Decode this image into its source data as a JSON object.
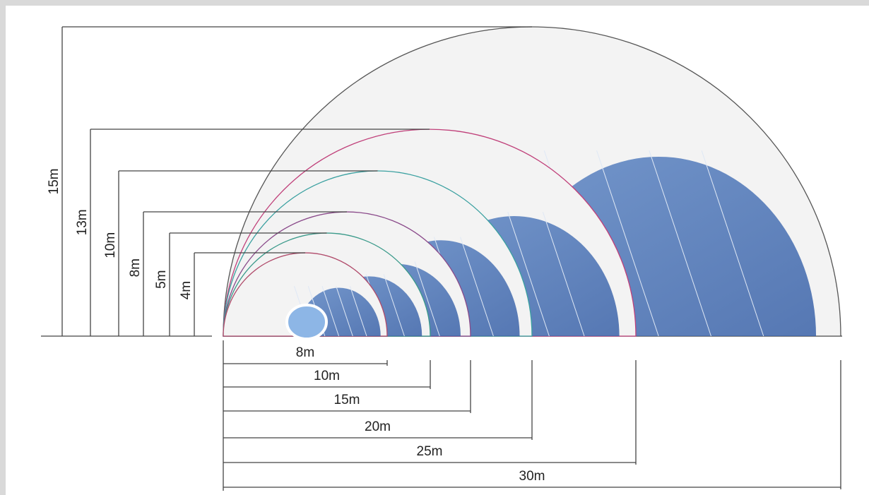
{
  "height_labels": [
    "15m",
    "13m",
    "10m",
    "8m",
    "5m",
    "4m"
  ],
  "width_labels": [
    "8m",
    "10m",
    "15m",
    "20m",
    "25m",
    "30m"
  ]
}
